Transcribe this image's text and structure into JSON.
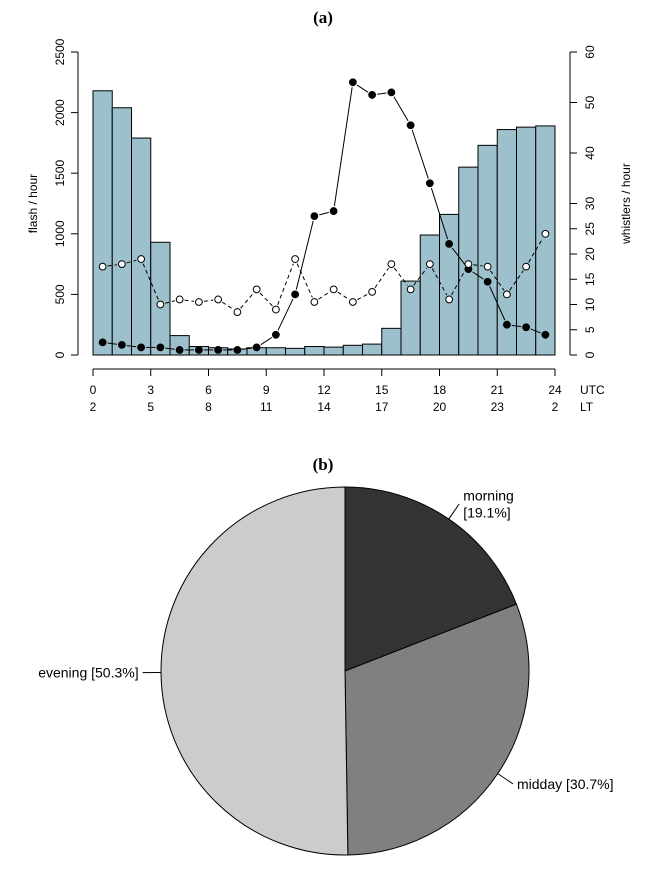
{
  "chart_data": [
    {
      "type": "bar",
      "title": "(a)",
      "ylabel": "flash / hour",
      "y2label": "whistlers / hour",
      "ylim": [
        0,
        2500
      ],
      "y2lim": [
        0,
        60
      ],
      "yticks": [
        "0",
        "500",
        "1000",
        "1500",
        "2000",
        "2500"
      ],
      "y2ticks": [
        "0",
        "5",
        "10",
        "15",
        "20",
        "25",
        "30",
        "40",
        "50",
        "60"
      ],
      "xlim": [
        0,
        24
      ],
      "xticks_utc": [
        "0",
        "3",
        "6",
        "9",
        "12",
        "15",
        "18",
        "21",
        "24"
      ],
      "xticks_lt": [
        "2",
        "5",
        "8",
        "11",
        "14",
        "17",
        "20",
        "23",
        "2"
      ],
      "x_unit_utc": "UTC",
      "x_unit_lt": "LT",
      "bar_color": "#9dc0cd",
      "bars": {
        "x_start": [
          0,
          1,
          2,
          3,
          4,
          5,
          6,
          7,
          8,
          9,
          10,
          11,
          12,
          13,
          14,
          15,
          16,
          17,
          18,
          19,
          20,
          21,
          22,
          23
        ],
        "values": [
          2180,
          2040,
          1790,
          930,
          160,
          70,
          60,
          50,
          60,
          60,
          55,
          70,
          65,
          80,
          90,
          220,
          610,
          990,
          1160,
          1550,
          1730,
          1860,
          1880,
          1890
        ]
      },
      "series": [
        {
          "marker": "filled-circle",
          "x": [
            0.5,
            1.5,
            2.5,
            3.5,
            4.5,
            5.5,
            6.5,
            7.5,
            8.5,
            9.5,
            10.5,
            11.5,
            12.5,
            13.5,
            14.5,
            15.5,
            16.5,
            17.5,
            18.5,
            19.5,
            20.5,
            21.5,
            22.5,
            23.5
          ],
          "values": [
            2.5,
            2,
            1.5,
            1.5,
            1,
            1,
            1,
            1,
            1.5,
            4,
            12,
            27.5,
            28.5,
            54,
            51.5,
            52,
            45.5,
            34,
            22,
            17,
            14.5,
            6,
            5.5,
            4
          ]
        },
        {
          "marker": "open-circle",
          "x": [
            0.5,
            1.5,
            2.5,
            3.5,
            4.5,
            5.5,
            6.5,
            7.5,
            8.5,
            9.5,
            10.5,
            11.5,
            12.5,
            13.5,
            14.5,
            15.5,
            16.5,
            17.5,
            18.5,
            19.5,
            20.5,
            21.5,
            22.5,
            23.5
          ],
          "values": [
            17.5,
            18,
            19,
            10,
            11,
            10.5,
            11,
            8.5,
            13,
            9,
            19,
            10.5,
            13,
            10.5,
            12.5,
            18,
            13,
            18,
            11,
            18,
            17.5,
            12,
            17.5,
            24
          ]
        }
      ]
    },
    {
      "type": "pie",
      "title": "(b)",
      "slices": [
        {
          "label": "morning [19.1%]",
          "label_lines": [
            "morning",
            "[19.1%]"
          ],
          "value": 19.1,
          "color": "#333333"
        },
        {
          "label": "midday [30.7%]",
          "label_lines": [
            "midday [30.7%]"
          ],
          "value": 30.7,
          "color": "#808080"
        },
        {
          "label": "evening [50.3%]",
          "label_lines": [
            "evening [50.3%]"
          ],
          "value": 50.3,
          "color": "#cccccc"
        }
      ]
    }
  ]
}
